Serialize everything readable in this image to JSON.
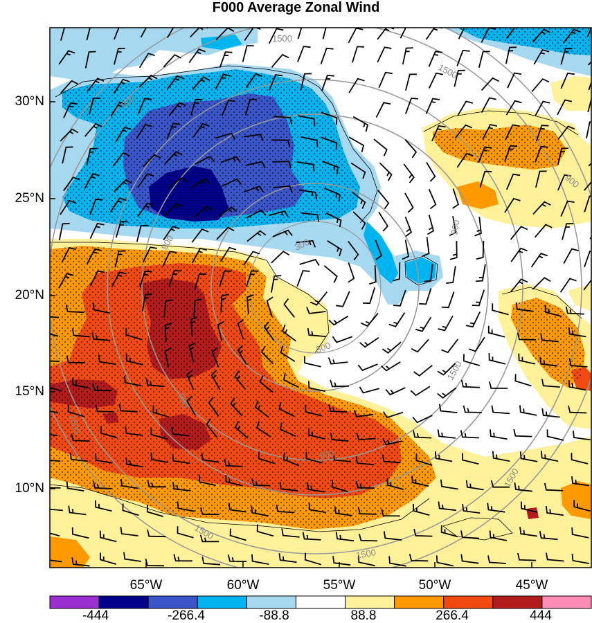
{
  "title": "F000 Average Zonal Wind",
  "lat_labels": [
    "30°N",
    "25°N",
    "20°N",
    "15°N",
    "10°N"
  ],
  "lon_labels": [
    "65°W",
    "60°W",
    "55°W",
    "50°W",
    "45°W"
  ],
  "colorbar": {
    "tick_labels": [
      "-444",
      "-266.4",
      "-88.8",
      "88.8",
      "266.4",
      "444"
    ],
    "colors": [
      "#9b30d0",
      "#00008b",
      "#3a55c8",
      "#00b4f0",
      "#a6d8f0",
      "#ffffff",
      "#fff09a",
      "#ff9900",
      "#f04a10",
      "#b31c1c",
      "#ff8cb4"
    ]
  },
  "contour_labels": [
    "1500",
    "1500",
    "900",
    "900",
    "900",
    "900",
    "300",
    "300",
    "900",
    "900",
    "1500",
    "1500",
    "1500",
    "1500",
    "1500"
  ],
  "colors": {
    "dark_blue": "#00008b",
    "medium_blue": "#3a55c8",
    "blue": "#00b4f0",
    "light_blue": "#a6d8f0",
    "light_yellow": "#fff09a",
    "orange": "#ff9900",
    "red_orange": "#f04a10",
    "dark_red": "#b31c1c",
    "contour_gray": "#999999"
  }
}
